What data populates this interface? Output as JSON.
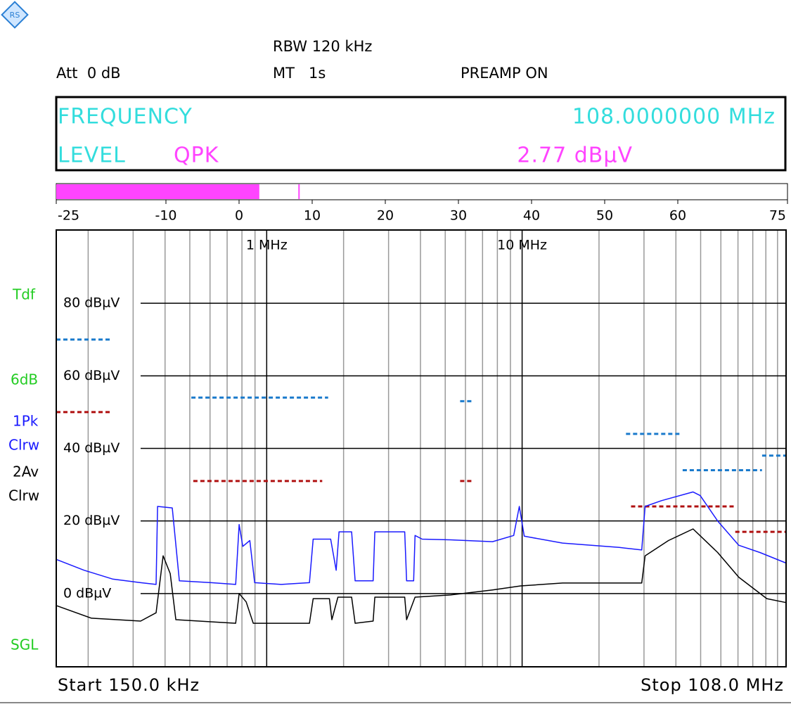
{
  "header": {
    "rbw": "RBW 120 kHz",
    "att": "Att  0 dB",
    "mt": "MT   1s",
    "preamp": "PREAMP ON"
  },
  "readout": {
    "frequency_label": "FREQUENCY",
    "frequency": "108.0000000 MHz",
    "level_label": "LEVEL",
    "detector": "QPK",
    "level": "2.77 dBµV"
  },
  "gauge": {
    "xlim": [
      -25,
      75
    ],
    "xticks": [
      -25,
      -10,
      0,
      10,
      20,
      30,
      40,
      50,
      60,
      75
    ],
    "value": 2.77,
    "marker": 8.2,
    "color": "#ff44ff"
  },
  "side_labels": [
    {
      "text": "Tdf",
      "color": "#22cc22"
    },
    {
      "text": "6dB",
      "color": "#22cc22"
    },
    {
      "text": "SGL",
      "color": "#22cc22"
    }
  ],
  "chart_data": {
    "type": "line",
    "xlog": true,
    "xlim": [
      0.15,
      108
    ],
    "ylim": [
      -20,
      100
    ],
    "xticks": [
      {
        "value": 1,
        "label": "1 MHz"
      },
      {
        "value": 10,
        "label": "10 MHz"
      }
    ],
    "x_minor_ticks": [
      0.2,
      0.3,
      0.4,
      0.5,
      0.6,
      0.7,
      0.8,
      0.9,
      2,
      3,
      4,
      5,
      6,
      7,
      8,
      9,
      20,
      30,
      40,
      50,
      60,
      70,
      80,
      90,
      100
    ],
    "yticks": [
      {
        "value": 0,
        "label": "0 dBµV"
      },
      {
        "value": 20,
        "label": "20 dBµV"
      },
      {
        "value": 40,
        "label": "40 dBµV"
      },
      {
        "value": 60,
        "label": "60 dBµV"
      },
      {
        "value": 80,
        "label": "80 dBµV"
      }
    ],
    "start_label": "Start 150.0 kHz",
    "stop_label": "Stop 108.0 MHz",
    "series": [
      {
        "name": "1Pk",
        "mode": "Clrw",
        "color": "#1a1aff",
        "x": [
          0.15,
          0.193,
          0.249,
          0.321,
          0.369,
          0.374,
          0.427,
          0.455,
          0.606,
          0.756,
          0.78,
          0.806,
          0.859,
          0.897,
          1.14,
          1.47,
          1.52,
          1.78,
          1.87,
          1.92,
          2.15,
          2.22,
          2.61,
          2.65,
          3.47,
          3.53,
          3.76,
          3.81,
          4.06,
          5.24,
          7.66,
          9.27,
          9.75,
          10.19,
          14.4,
          24.0,
          29.4,
          30.3,
          35.1,
          46.7,
          49.8,
          58.3,
          70.5,
          85.3,
          108
        ],
        "values": [
          9.4,
          6.4,
          4,
          3,
          2.5,
          24,
          23.6,
          3.5,
          3,
          2.5,
          19,
          13,
          14.6,
          3,
          2.5,
          3,
          15,
          15,
          6.4,
          17,
          17,
          3.5,
          3.5,
          17,
          17,
          3.5,
          3.5,
          16,
          15,
          14.8,
          14.3,
          16,
          24,
          15.8,
          13.9,
          12.7,
          12,
          24,
          25.6,
          28,
          27,
          20,
          13.3,
          11.3,
          8.4
        ]
      },
      {
        "name": "2Av",
        "mode": "Clrw",
        "color": "#000000",
        "x": [
          0.15,
          0.206,
          0.321,
          0.369,
          0.393,
          0.419,
          0.441,
          0.756,
          0.78,
          0.831,
          0.886,
          1.47,
          1.52,
          1.76,
          1.8,
          1.9,
          2.15,
          2.22,
          2.61,
          2.65,
          3.47,
          3.53,
          3.81,
          5.24,
          7.66,
          9.87,
          14.4,
          29.4,
          30.3,
          37.4,
          46.7,
          58.3,
          70.5,
          90.8,
          108
        ],
        "values": [
          -3.3,
          -6.8,
          -7.6,
          -5.3,
          10.4,
          5.5,
          -7.2,
          -8.2,
          0,
          -2.3,
          -8.2,
          -8.2,
          -1.4,
          -1.4,
          -7.2,
          -1,
          -1,
          -8.2,
          -7.6,
          -1,
          -1,
          -7.2,
          -1,
          -0.4,
          1,
          2.1,
          2.9,
          2.9,
          10.4,
          14.6,
          17.8,
          11.3,
          4.5,
          -1.4,
          -2.5
        ]
      }
    ],
    "limit_lines": [
      {
        "color": "#1a7acc",
        "x": [
          0.15,
          0.246,
          null,
          0.507,
          1.74,
          null,
          5.72,
          6.33,
          null,
          25.5,
          41.9,
          null,
          42.5,
          86.9,
          null,
          87,
          108
        ],
        "values": [
          70,
          70,
          null,
          54,
          54,
          null,
          53,
          53,
          null,
          44,
          44,
          null,
          34,
          34,
          null,
          38,
          38
        ]
      },
      {
        "color": "#b01010",
        "x": [
          0.15,
          0.246,
          null,
          0.516,
          1.65,
          null,
          5.72,
          6.41,
          null,
          26.7,
          68.3,
          null,
          68.3,
          108
        ],
        "values": [
          50,
          50,
          null,
          31,
          31,
          null,
          31,
          31,
          null,
          24,
          24,
          null,
          17,
          17
        ]
      }
    ]
  }
}
